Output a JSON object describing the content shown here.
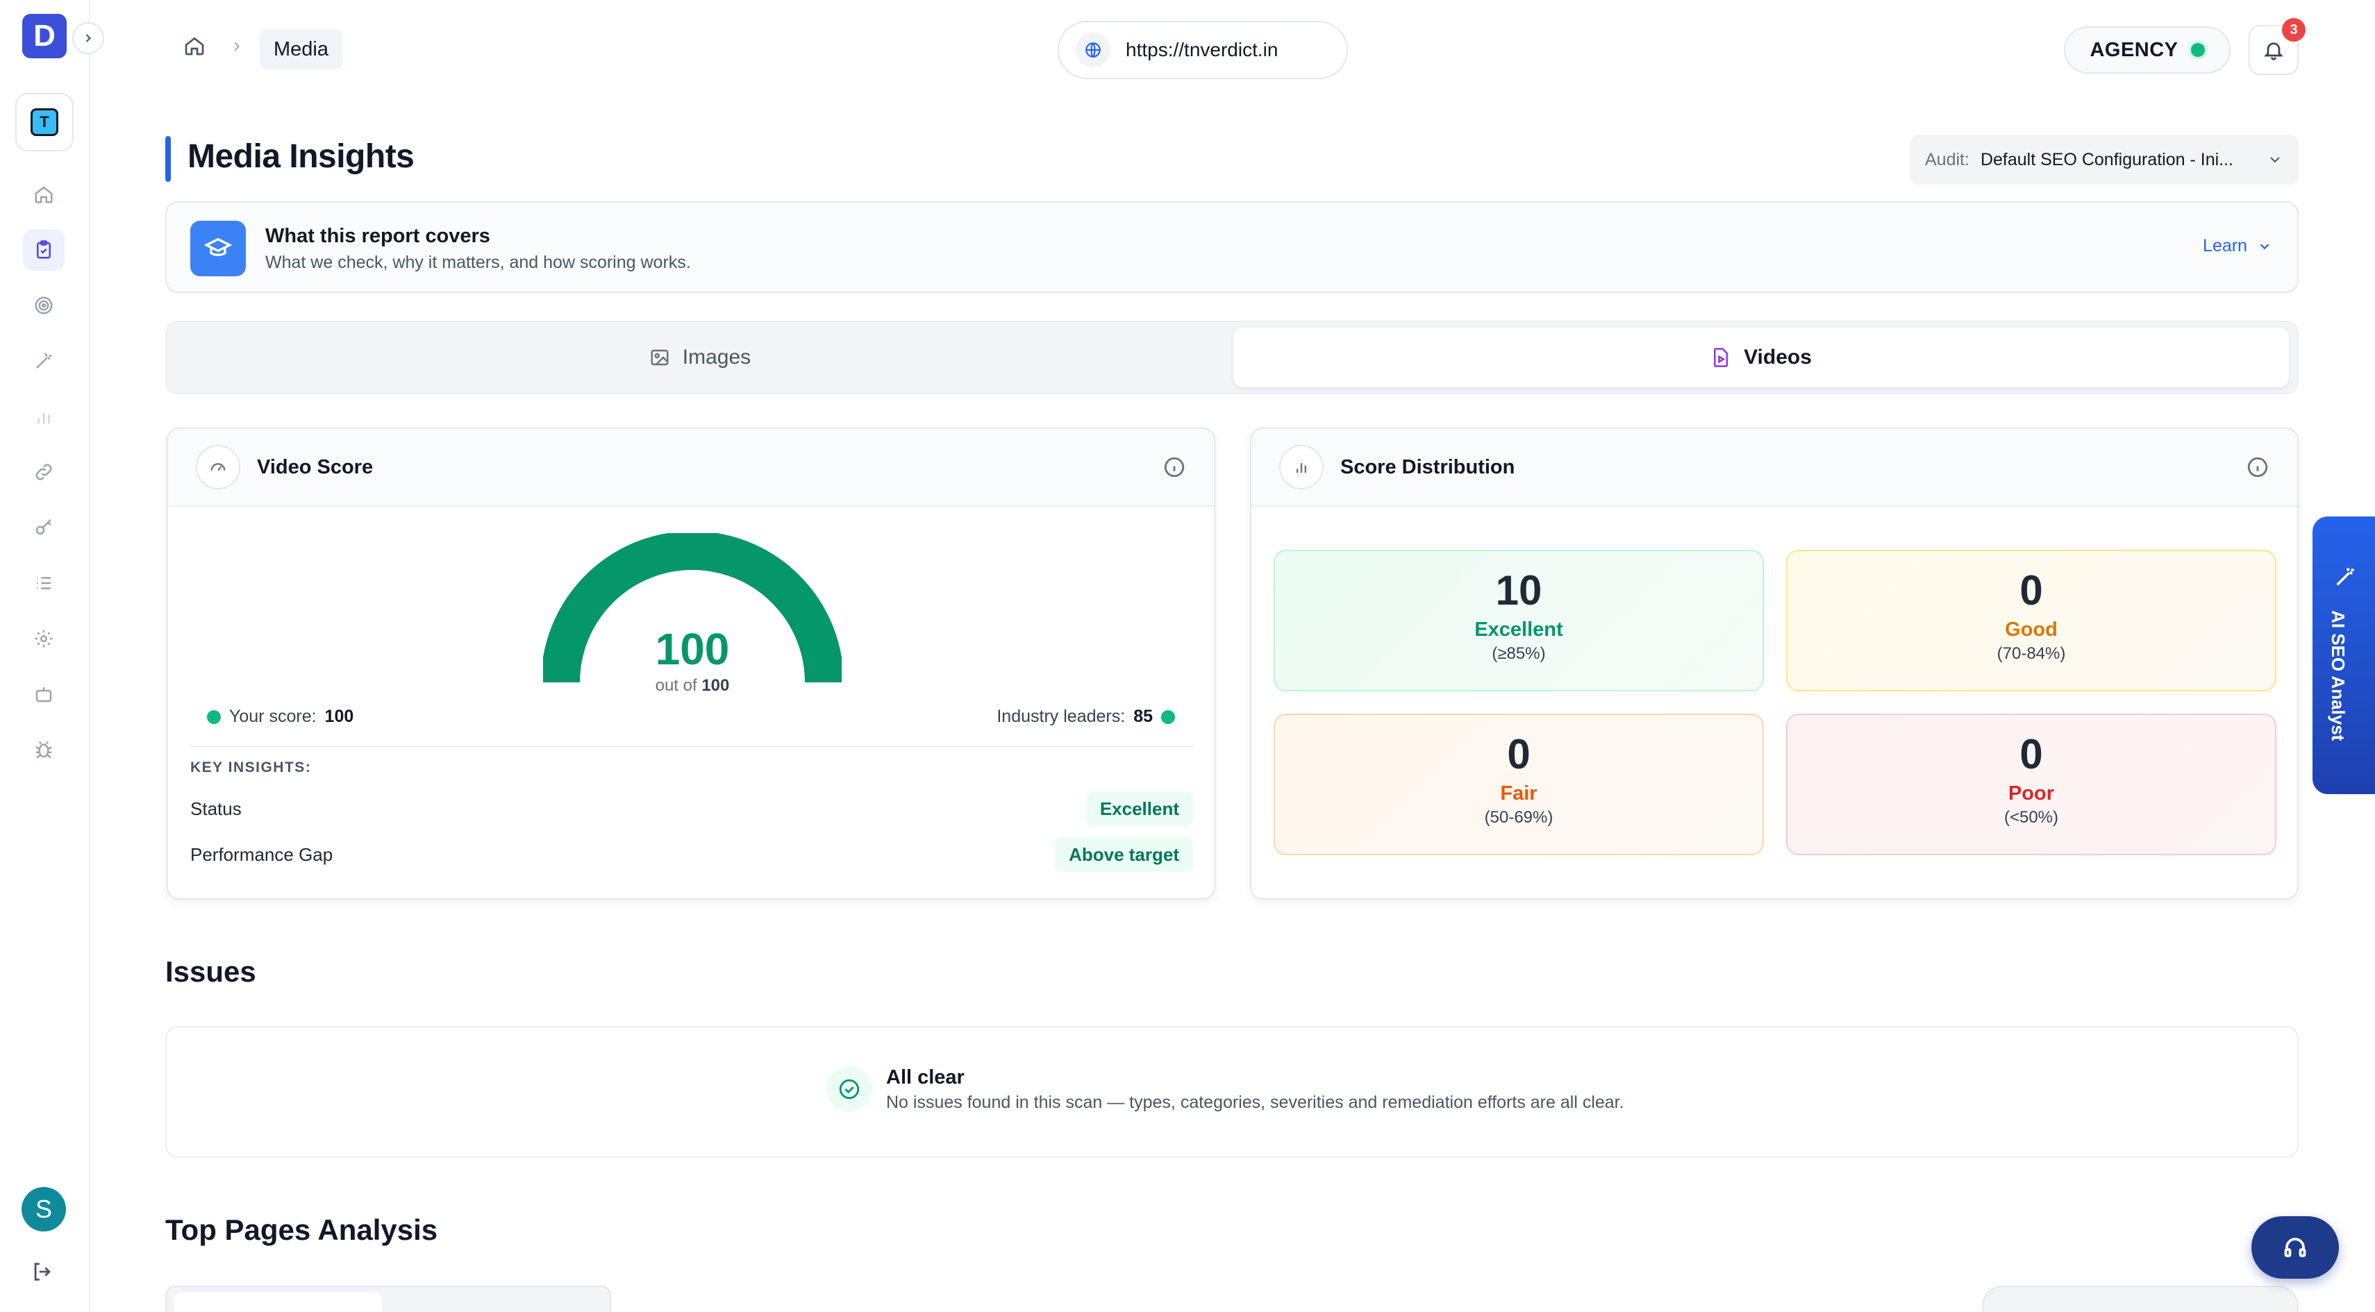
{
  "brand": {
    "logo_letter": "D",
    "workspace_letter": "T"
  },
  "sidebar": {
    "items": [
      {
        "icon": "home-icon"
      },
      {
        "icon": "clipboard-check-icon",
        "active": true
      },
      {
        "icon": "target-icon"
      },
      {
        "icon": "magic-wand-icon"
      },
      {
        "icon": "bar-chart-icon"
      },
      {
        "icon": "link-icon"
      },
      {
        "icon": "key-icon"
      },
      {
        "icon": "list-icon"
      },
      {
        "icon": "gear-icon"
      },
      {
        "icon": "robot-icon"
      },
      {
        "icon": "bug-icon"
      }
    ],
    "avatar_letter": "S"
  },
  "breadcrumb": {
    "current": "Media"
  },
  "header": {
    "url": "https://tnverdict.in",
    "plan": "AGENCY",
    "notifications": "3"
  },
  "page": {
    "title": "Media Insights",
    "audit_label": "Audit:",
    "audit_value": "Default SEO Configuration - Ini..."
  },
  "info": {
    "title": "What this report covers",
    "subtitle": "What we check, why it matters, and how scoring works.",
    "learn": "Learn"
  },
  "tabs": {
    "images": "Images",
    "videos": "Videos",
    "active": "videos"
  },
  "score_card": {
    "title": "Video Score",
    "score": "100",
    "score_fraction": 1.0,
    "out_of_prefix": "out of",
    "out_of_value": "100",
    "your_score_label": "Your score:",
    "your_score": "100",
    "leaders_label": "Industry leaders:",
    "leaders_score": "85",
    "key_insights": "KEY INSIGHTS:",
    "status_label": "Status",
    "status_value": "Excellent",
    "gap_label": "Performance Gap",
    "gap_value": "Above target"
  },
  "distribution": {
    "title": "Score Distribution",
    "excellent": {
      "count": "10",
      "label": "Excellent",
      "range": "(≥85%)"
    },
    "good": {
      "count": "0",
      "label": "Good",
      "range": "(70-84%)"
    },
    "fair": {
      "count": "0",
      "label": "Fair",
      "range": "(50-69%)"
    },
    "poor": {
      "count": "0",
      "label": "Poor",
      "range": "(<50%)"
    }
  },
  "issues": {
    "title": "Issues",
    "clear_title": "All clear",
    "clear_text": "No issues found in this scan — types, categories, severities and remediation efforts are all clear."
  },
  "top_pages": {
    "title": "Top Pages Analysis"
  },
  "floating": {
    "ai_tab": "AI SEO Analyst"
  },
  "colors": {
    "accent": "#2563eb",
    "success": "#059669",
    "good": "#d97706",
    "fair": "#ea580c",
    "poor": "#dc2626"
  }
}
